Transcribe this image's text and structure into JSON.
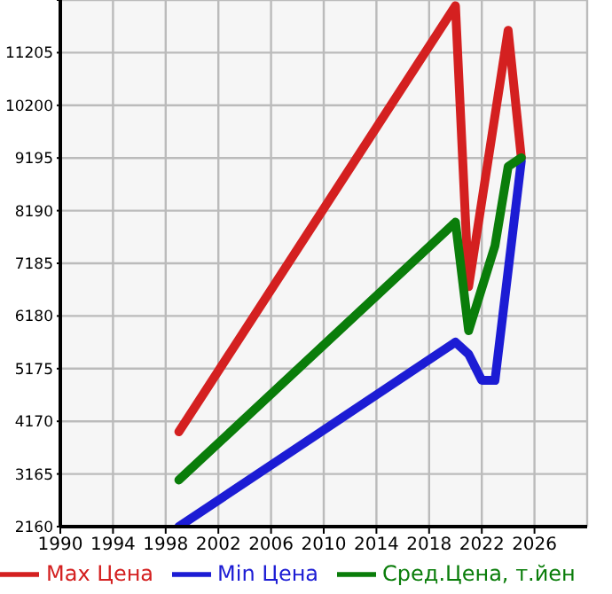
{
  "chart_data": {
    "type": "line",
    "xlim": [
      1990,
      2030
    ],
    "xticks": [
      1990,
      1994,
      1998,
      2002,
      2006,
      2010,
      2014,
      2018,
      2022,
      2026
    ],
    "ylim": [
      2160,
      12210
    ],
    "yticks": [
      2160,
      3165,
      4170,
      5175,
      6180,
      7185,
      8190,
      9195,
      10200,
      11205,
      {
        "value": 12210,
        "label": null
      }
    ],
    "grid": true,
    "legend": "bottom",
    "marker": "none",
    "line_style": "solid",
    "series": [
      {
        "name": "Max Цена",
        "color": "#d42020",
        "x": [
          1999,
          2020,
          2021,
          2024,
          2025
        ],
        "values": [
          3970,
          12100,
          6740,
          11630,
          9200
        ]
      },
      {
        "name": "Min Цена",
        "color": "#1c1cd4",
        "x": [
          1999,
          2020,
          2021,
          2022,
          2023,
          2025
        ],
        "values": [
          2160,
          5680,
          5450,
          4950,
          4950,
          9140
        ]
      },
      {
        "name": "Сред.Цена, т.йен",
        "color": "#0a7d0a",
        "x": [
          1999,
          2020,
          2021,
          2023,
          2024,
          2025
        ],
        "values": [
          3050,
          7970,
          5900,
          7520,
          9030,
          9200
        ]
      }
    ]
  }
}
